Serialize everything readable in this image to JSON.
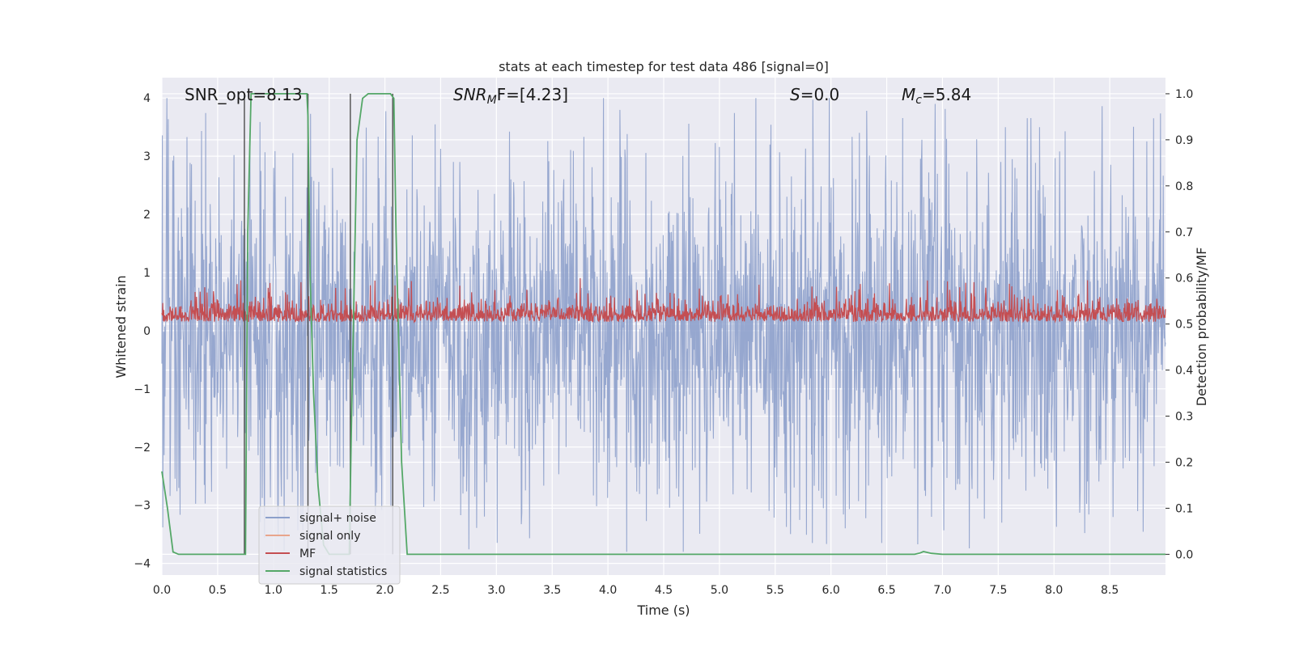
{
  "chart_data": {
    "type": "line",
    "title": "stats at each timestep for test data 486 [signal=0]",
    "xlabel": "Time (s)",
    "ylabel": "Whitened strain",
    "ylabel_right": "Detection probability/MF",
    "xlim": [
      0,
      9
    ],
    "ylim": [
      -4.2,
      4.35
    ],
    "ylim_right": [
      -0.045,
      1.035
    ],
    "x_ticks": [
      "0.0",
      "0.5",
      "1.0",
      "1.5",
      "2.0",
      "2.5",
      "3.0",
      "3.5",
      "4.0",
      "4.5",
      "5.0",
      "5.5",
      "6.0",
      "6.5",
      "7.0",
      "7.5",
      "8.0",
      "8.5"
    ],
    "y_ticks": [
      "4",
      "3",
      "2",
      "1",
      "0",
      "−1",
      "−2",
      "−3",
      "−4"
    ],
    "y_ticks_right": [
      "1.0",
      "0.9",
      "0.8",
      "0.7",
      "0.6",
      "0.5",
      "0.4",
      "0.3",
      "0.2",
      "0.1",
      "0.0"
    ],
    "annotations": {
      "snr_opt": "SNR_opt=8.13",
      "snr_mf_main": "SNR",
      "snr_mf_sub": "M",
      "snr_mf_rest": "F=[4.23]",
      "s_main": "S",
      "s_rest": "=0.0",
      "mc_main": "M",
      "mc_sub": "c",
      "mc_rest": "=5.84"
    },
    "legend_position": "lower-left",
    "series": [
      {
        "name": "signal+ noise",
        "color": "#8da0cb",
        "description_level": "whitened strain noise, approx range -3.8 to 4.0"
      },
      {
        "name": "signal only",
        "color": "#e8a58c",
        "values": []
      },
      {
        "name": "MF",
        "color": "#c44e52"
      },
      {
        "name": "signal statistics",
        "color": "#55a868",
        "x": [
          0.0,
          0.05,
          0.1,
          0.15,
          0.2,
          0.4,
          0.6,
          0.75,
          0.77,
          0.8,
          0.9,
          1.0,
          1.1,
          1.2,
          1.3,
          1.31,
          1.33,
          1.36,
          1.4,
          1.45,
          1.5,
          1.55,
          1.6,
          1.65,
          1.68,
          1.7,
          1.75,
          1.8,
          1.85,
          1.9,
          2.0,
          2.05,
          2.08,
          2.1,
          2.15,
          2.2,
          2.3,
          2.6,
          3.0,
          4.0,
          5.0,
          6.0,
          6.5,
          6.75,
          6.8,
          6.83,
          6.9,
          7.0,
          7.5,
          8.0,
          8.5,
          8.7,
          9.0
        ],
        "values": [
          0.18,
          0.1,
          0.005,
          0.0,
          0.0,
          0.0,
          0.0,
          0.0,
          0.7,
          1.0,
          1.0,
          1.0,
          1.0,
          1.0,
          1.0,
          0.95,
          0.6,
          0.35,
          0.15,
          0.02,
          0.0,
          0.0,
          0.0,
          0.0,
          0.0,
          0.28,
          0.9,
          0.99,
          1.0,
          1.0,
          1.0,
          1.0,
          0.99,
          0.7,
          0.2,
          0.0,
          0.0,
          0.0,
          0.0,
          0.0,
          0.0,
          0.0,
          0.0,
          0.0,
          0.003,
          0.006,
          0.002,
          0.0,
          0.0,
          0.0,
          0.0,
          0.0,
          0.0
        ]
      }
    ],
    "vertical_lines_x": [
      0.74,
      1.31,
      1.69,
      2.07
    ],
    "vertical_lines_color": "#4d4d4d",
    "noise_band": {
      "center": 0.0,
      "typical_amplitude": 2.2,
      "spike_max": 4.0,
      "spike_min": -3.8
    },
    "mf_band": {
      "min": 0.5,
      "max": 0.59,
      "spike_max": 0.6
    }
  }
}
